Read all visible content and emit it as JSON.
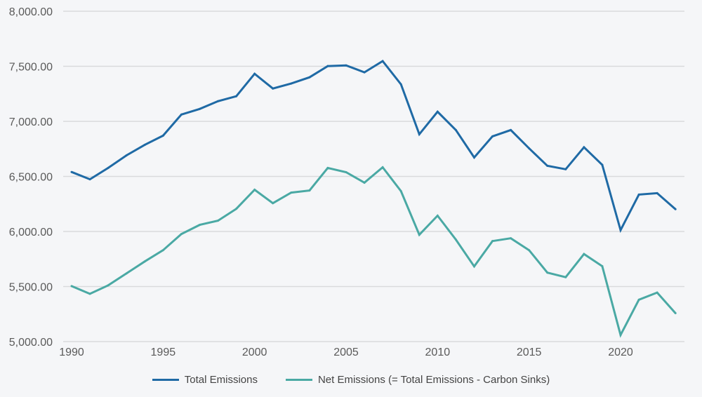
{
  "chart_data": {
    "type": "line",
    "title": "",
    "xlabel": "",
    "ylabel": "",
    "xlim": [
      1990,
      2023
    ],
    "ylim": [
      5000,
      8000
    ],
    "grid": true,
    "legend_position": "bottom",
    "x_ticks": [
      "1990",
      "1995",
      "2000",
      "2005",
      "2010",
      "2015",
      "2020"
    ],
    "y_ticks": [
      "5,000.00",
      "5,500.00",
      "6,000.00",
      "6,500.00",
      "7,000.00",
      "7,500.00",
      "8,000.00"
    ],
    "x": [
      1990,
      1991,
      1992,
      1993,
      1994,
      1995,
      1996,
      1997,
      1998,
      1999,
      2000,
      2001,
      2002,
      2003,
      2004,
      2005,
      2006,
      2007,
      2008,
      2009,
      2010,
      2011,
      2012,
      2013,
      2014,
      2015,
      2016,
      2017,
      2018,
      2019,
      2020,
      2021,
      2022,
      2023
    ],
    "series": [
      {
        "name": "Total Emissions",
        "color": "#1f6aa5",
        "values": [
          6540,
          6474,
          6577,
          6691,
          6787,
          6870,
          7062,
          7113,
          7183,
          7228,
          7432,
          7298,
          7343,
          7400,
          7502,
          7508,
          7445,
          7547,
          7336,
          6883,
          7087,
          6921,
          6672,
          6864,
          6921,
          6755,
          6596,
          6565,
          6765,
          6605,
          6012,
          6335,
          6348,
          6202
        ]
      },
      {
        "name": "Net Emissions (= Total Emissions - Carbon Sinks)",
        "color": "#4aa9a4",
        "values": [
          5504,
          5434,
          5511,
          5619,
          5728,
          5830,
          5977,
          6060,
          6098,
          6206,
          6379,
          6257,
          6353,
          6372,
          6577,
          6538,
          6443,
          6583,
          6366,
          5970,
          6143,
          5926,
          5683,
          5913,
          5938,
          5830,
          5626,
          5585,
          5795,
          5685,
          5060,
          5380,
          5445,
          5258
        ]
      }
    ]
  }
}
